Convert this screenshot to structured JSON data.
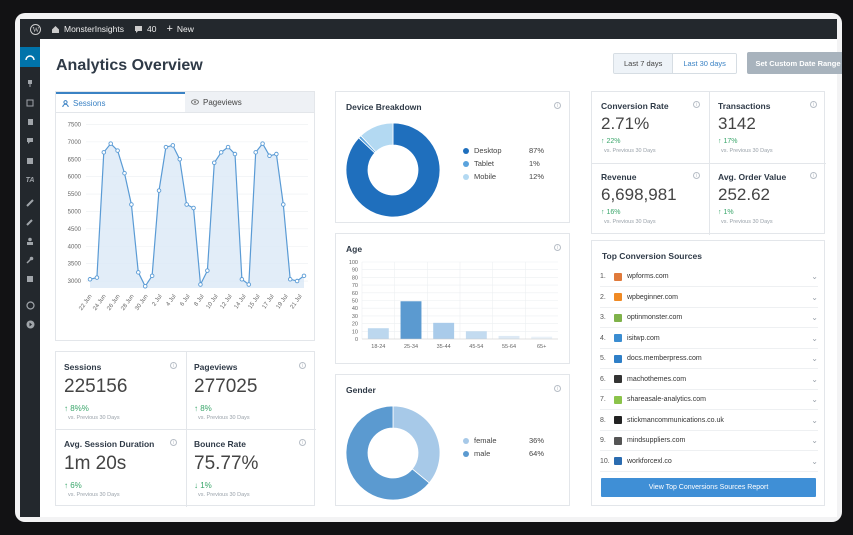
{
  "adminbar": {
    "site_name": "MonsterInsights",
    "comments_count": "40",
    "new_label": "New"
  },
  "header": {
    "title": "Analytics Overview",
    "range_7": "Last 7 days",
    "range_30": "Last 30 days",
    "custom_range": "Set Custom Date Range"
  },
  "sessions_chart": {
    "tabs": [
      {
        "label": "Sessions"
      },
      {
        "label": "Pageviews"
      }
    ],
    "y_ticks": [
      "7500",
      "7000",
      "6500",
      "6000",
      "5500",
      "5000",
      "4500",
      "4000",
      "3500",
      "3000"
    ],
    "x_ticks": [
      "22 Jun",
      "24 Jun",
      "26 Jun",
      "28 Jun",
      "30 Jun",
      "2 Jul",
      "4 Jul",
      "6 Jul",
      "8 Jul",
      "10 Jul",
      "12 Jul",
      "14 Jul",
      "15 Jul",
      "17 Jul",
      "19 Jul",
      "21 Jul"
    ],
    "color": "#5a9bd5"
  },
  "chart_data": [
    {
      "type": "area",
      "title": "",
      "ylim": [
        2800,
        7600
      ],
      "values": [
        3050,
        3100,
        6700,
        6950,
        6750,
        6100,
        5200,
        3250,
        2850,
        3150,
        5600,
        6850,
        6900,
        6500,
        5200,
        5100,
        2900,
        3300,
        6400,
        6700,
        6850,
        6650,
        3050,
        2900,
        6700,
        6950,
        6600,
        6650,
        5200,
        3050,
        3000,
        3150
      ]
    },
    {
      "type": "pie",
      "title": "Device Breakdown",
      "labels": [
        "Desktop",
        "Tablet",
        "Mobile"
      ],
      "values": [
        87,
        1,
        12
      ],
      "colors": [
        "#1f6fbd",
        "#5aa3dd",
        "#b3d9f2"
      ]
    },
    {
      "type": "bar",
      "title": "Age",
      "categories": [
        "18-24",
        "25-34",
        "35-44",
        "45-54",
        "55-64",
        "65+"
      ],
      "values": [
        14,
        49,
        21,
        10,
        4,
        3
      ],
      "ylim": [
        0,
        100
      ],
      "y_ticks": [
        "100",
        "90",
        "80",
        "70",
        "60",
        "50",
        "40",
        "30",
        "20",
        "10",
        "0"
      ]
    },
    {
      "type": "pie",
      "title": "Gender",
      "labels": [
        "female",
        "male"
      ],
      "values": [
        36,
        64
      ],
      "colors": [
        "#a7c9e8",
        "#5b9ad0"
      ]
    }
  ],
  "device": {
    "title": "Device Breakdown",
    "rows": [
      {
        "label": "Desktop",
        "value": "87%"
      },
      {
        "label": "Tablet",
        "value": "1%"
      },
      {
        "label": "Mobile",
        "value": "12%"
      }
    ]
  },
  "age": {
    "title": "Age"
  },
  "gender": {
    "title": "Gender",
    "rows": [
      {
        "label": "female",
        "value": "36%"
      },
      {
        "label": "male",
        "value": "64%"
      }
    ]
  },
  "stats": {
    "sessions": {
      "label": "Sessions",
      "value": "225156",
      "change": "8%%",
      "sub": "vs. Previous 30 Days"
    },
    "pageviews": {
      "label": "Pageviews",
      "value": "277025",
      "change": "8%",
      "sub": "vs. Previous 30 Days"
    },
    "duration": {
      "label": "Avg. Session Duration",
      "value": "1m 20s",
      "change": "6%",
      "sub": "vs. Previous 30 Days"
    },
    "bounce": {
      "label": "Bounce Rate",
      "value": "75.77%",
      "change": "1%",
      "sub": "vs. Previous 30 Days"
    }
  },
  "ecom": {
    "conv": {
      "label": "Conversion Rate",
      "value": "2.71%",
      "change": "22%",
      "sub": "vs. Previous 30 Days"
    },
    "trans": {
      "label": "Transactions",
      "value": "3142",
      "change": "17%",
      "sub": "vs. Previous 30 Days"
    },
    "rev": {
      "label": "Revenue",
      "value": "6,698,981",
      "change": "16%",
      "sub": "vs. Previous 30 Days"
    },
    "aov": {
      "label": "Avg. Order Value",
      "value": "252.62",
      "change": "1%",
      "sub": "vs. Previous 30 Days"
    }
  },
  "sources": {
    "title": "Top Conversion Sources",
    "items": [
      {
        "n": "1.",
        "site": "wpforms.com",
        "color": "#e07a3b"
      },
      {
        "n": "2.",
        "site": "wpbeginner.com",
        "color": "#f08a24"
      },
      {
        "n": "3.",
        "site": "optinmonster.com",
        "color": "#7fb24a"
      },
      {
        "n": "4.",
        "site": "isitwp.com",
        "color": "#3b8dd1"
      },
      {
        "n": "5.",
        "site": "docs.memberpress.com",
        "color": "#2f7fc7"
      },
      {
        "n": "6.",
        "site": "machothemes.com",
        "color": "#333333"
      },
      {
        "n": "7.",
        "site": "shareasale-analytics.com",
        "color": "#8bc34a"
      },
      {
        "n": "8.",
        "site": "stickmancommunications.co.uk",
        "color": "#222222"
      },
      {
        "n": "9.",
        "site": "mindsuppliers.com",
        "color": "#555555"
      },
      {
        "n": "10.",
        "site": "workforcexl.co",
        "color": "#2b6cb0"
      }
    ],
    "button": "View Top Conversions Sources Report"
  }
}
